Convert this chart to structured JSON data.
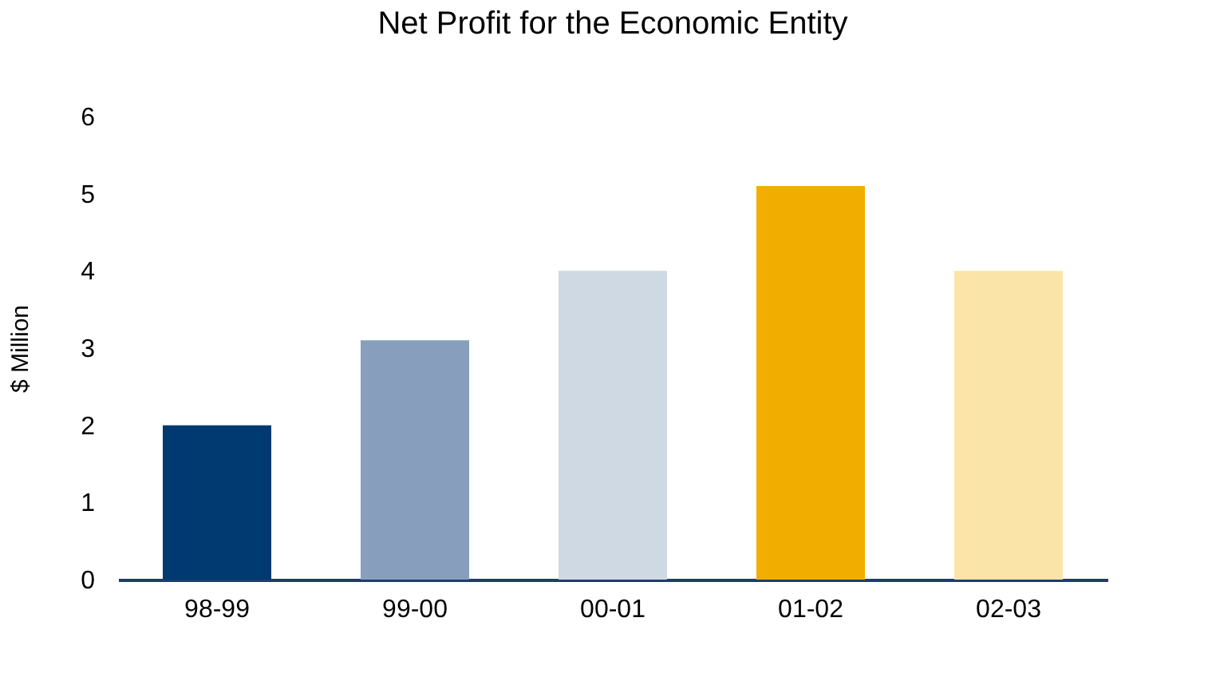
{
  "chart_data": {
    "type": "bar",
    "title": "Net Profit for the Economic Entity",
    "ylabel": "$ Million",
    "categories": [
      "98-99",
      "99-00",
      "00-01",
      "01-02",
      "02-03"
    ],
    "values": [
      2.0,
      3.1,
      4.0,
      5.1,
      4.0
    ],
    "colors": [
      "#003a70",
      "#879fbd",
      "#cfd9e3",
      "#f2ae00",
      "#fbe4a8"
    ],
    "ylim": [
      0,
      6
    ],
    "yticks": [
      0,
      1,
      2,
      3,
      4,
      5,
      6
    ],
    "grid": false
  }
}
